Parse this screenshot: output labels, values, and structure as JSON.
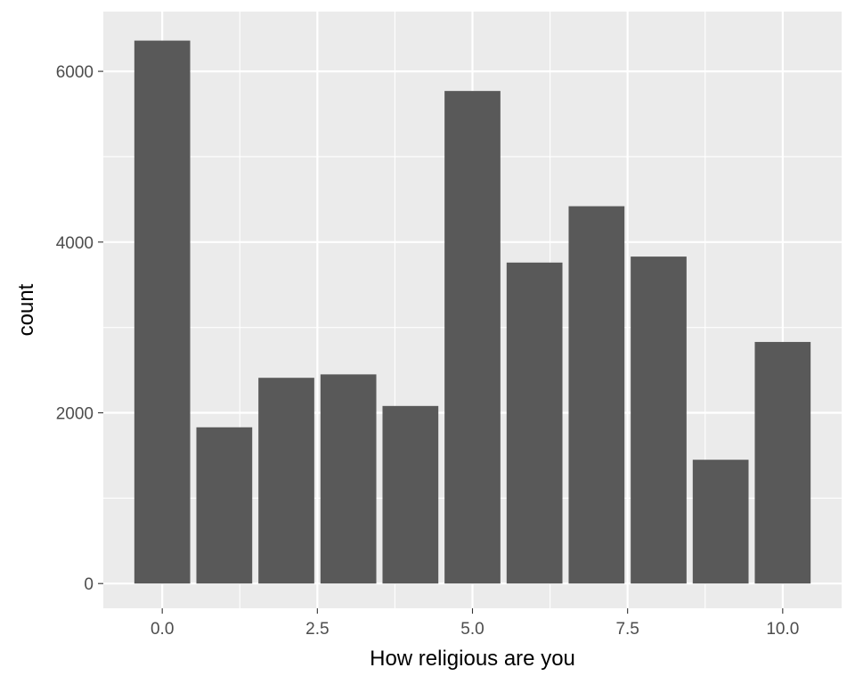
{
  "chart_data": {
    "type": "bar",
    "xlabel": "How religious are you",
    "ylabel": "count",
    "x": [
      0,
      1,
      2,
      3,
      4,
      5,
      6,
      7,
      8,
      9,
      10
    ],
    "values": [
      6360,
      1830,
      2410,
      2450,
      2080,
      5770,
      3760,
      4420,
      3830,
      1450,
      2830
    ],
    "xlim": [
      -0.95,
      10.95
    ],
    "ylim": [
      -290,
      6700
    ],
    "xticks": [
      0,
      2.5,
      5,
      7.5,
      10
    ],
    "xtick_labels": [
      "0.0",
      "2.5",
      "5.0",
      "7.5",
      "10.0"
    ],
    "yticks": [
      0,
      2000,
      4000,
      6000
    ],
    "ytick_labels": [
      "0",
      "2000",
      "4000",
      "6000"
    ],
    "grid": true,
    "colors": {
      "panel": "#ebebeb",
      "grid": "#ffffff",
      "bar": "#595959",
      "tick": "#333333"
    }
  }
}
